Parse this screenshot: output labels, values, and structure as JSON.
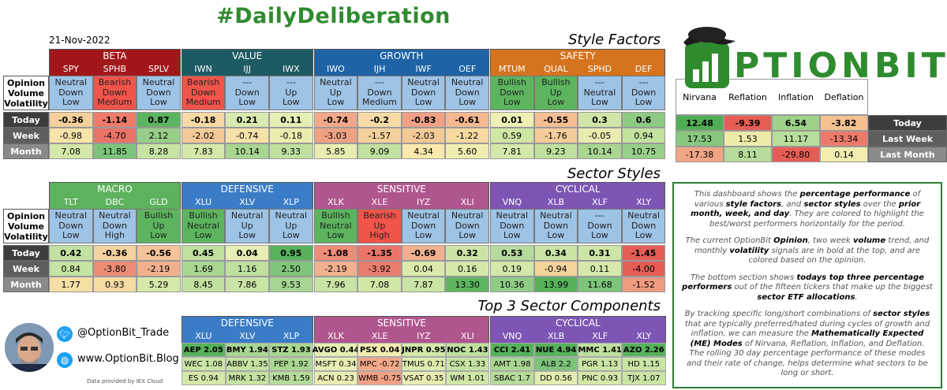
{
  "header": {
    "title": "#DailyDeliberation",
    "date": "21-Nov-2022",
    "logo_text": "PTIONBIT"
  },
  "row_header": {
    "opinion": "Opinion",
    "volume": "Volume",
    "volatility": "Volatility"
  },
  "row_labels": {
    "today": "Today",
    "week": "Week",
    "month": "Month"
  },
  "style_factors": {
    "title": "Style Factors",
    "groups": [
      {
        "name": "BETA",
        "color": "#a3171b",
        "tickers": [
          {
            "t": "SPY",
            "sig": [
              "Neutral",
              "Down",
              "Low"
            ],
            "sigc": "#9dc3e6",
            "today": "-0.36",
            "tc": "#f5d09a",
            "week": "-0.98",
            "wc": "#f8e4a8",
            "month": "7.08",
            "mc": "#d4e8a9"
          },
          {
            "t": "SPHB",
            "sig": [
              "Bearish",
              "Down",
              "Medium"
            ],
            "sigc": "#f0544a",
            "today": "-1.14",
            "tc": "#f07b6b",
            "week": "-4.70",
            "wc": "#e87468",
            "month": "11.85",
            "mc": "#7cc47a"
          },
          {
            "t": "SPLV",
            "sig": [
              "Neutral",
              "Down",
              "Low"
            ],
            "sigc": "#9dc3e6",
            "today": "0.87",
            "tc": "#5cb55e",
            "week": "2.12",
            "wc": "#98ce87",
            "month": "8.28",
            "mc": "#c6e3a3"
          }
        ]
      },
      {
        "name": "VALUE",
        "color": "#1d5a63",
        "tickers": [
          {
            "t": "IWN",
            "sig": [
              "Bearish",
              "Down",
              "Medium"
            ],
            "sigc": "#f0544a",
            "today": "-0.18",
            "tc": "#f7d9a5",
            "week": "-2.02",
            "wc": "#f4c998",
            "month": "7.83",
            "mc": "#d6e9aa"
          },
          {
            "t": "IJJ",
            "sig": [
              "---",
              "Down",
              "Low"
            ],
            "sigc": "#9dc3e6",
            "today": "0.21",
            "tc": "#d8eab0",
            "week": "-0.74",
            "wc": "#f6e1a9",
            "month": "10.14",
            "mc": "#a9d691"
          },
          {
            "t": "IWX",
            "sig": [
              "---",
              "Up",
              "Low"
            ],
            "sigc": "#9dc3e6",
            "today": "0.11",
            "tc": "#e5efb4",
            "week": "-0.18",
            "wc": "#edecb0",
            "month": "9.33",
            "mc": "#bfe09e"
          }
        ]
      },
      {
        "name": "GROWTH",
        "color": "#1e63a6",
        "tickers": [
          {
            "t": "IWO",
            "sig": [
              "Neutral",
              "Up",
              "Low"
            ],
            "sigc": "#9dc3e6",
            "today": "-0.74",
            "tc": "#f3a989",
            "week": "-3.03",
            "wc": "#efa184",
            "month": "5.85",
            "mc": "#e9eeb0"
          },
          {
            "t": "IJH",
            "sig": [
              "---",
              "Down",
              "Medium"
            ],
            "sigc": "#9dc3e6",
            "today": "-0.2",
            "tc": "#f7dba6",
            "week": "-1.57",
            "wc": "#f4d19c",
            "month": "9.09",
            "mc": "#c1e19f"
          },
          {
            "t": "IWF",
            "sig": [
              "Neutral",
              "Down",
              "Low"
            ],
            "sigc": "#9dc3e6",
            "today": "-0.83",
            "tc": "#f2a185",
            "week": "-2.03",
            "wc": "#f4c998",
            "month": "4.34",
            "mc": "#fbe8ac"
          },
          {
            "t": "OEF",
            "sig": [
              "Neutral",
              "Down",
              "Low"
            ],
            "sigc": "#9dc3e6",
            "today": "-0.61",
            "tc": "#f5b891",
            "week": "-1.22",
            "wc": "#f6daa2",
            "month": "5.60",
            "mc": "#f0edb0"
          }
        ]
      },
      {
        "name": "SAFETY",
        "color": "#d5731e",
        "tickers": [
          {
            "t": "MTUM",
            "sig": [
              "Bullish",
              "Down",
              "Low"
            ],
            "sigc": "#5cb55e",
            "today": "0.01",
            "tc": "#eef0b4",
            "week": "0.59",
            "wc": "#cfe6a4",
            "month": "7.81",
            "mc": "#d4e8a9"
          },
          {
            "t": "QUAL",
            "sig": [
              "Bullish",
              "Up",
              "Low"
            ],
            "sigc": "#5cb55e",
            "today": "-0.55",
            "tc": "#f5bf93",
            "week": "-1.76",
            "wc": "#f4cd9a",
            "month": "9.23",
            "mc": "#c0e09e"
          },
          {
            "t": "SPHD",
            "sig": [
              "---",
              "Neutral",
              "Low"
            ],
            "sigc": "#9dc3e6",
            "today": "0.3",
            "tc": "#cfe6a8",
            "week": "-0.05",
            "wc": "#eaebb0",
            "month": "10.14",
            "mc": "#a9d691"
          },
          {
            "t": "DEF",
            "sig": [
              "---",
              "Down",
              "Low"
            ],
            "sigc": "#9dc3e6",
            "today": "0.6",
            "tc": "#8fca84",
            "week": "0.94",
            "wc": "#c3e2a0",
            "month": "10.75",
            "mc": "#98cf8a"
          }
        ]
      }
    ]
  },
  "modes": {
    "headers": [
      "Nirvana",
      "Reflation",
      "Inflation",
      "Deflation"
    ],
    "rows": [
      {
        "label": "Today",
        "vals": [
          "12.48",
          "-9.39",
          "6.54",
          "-3.82"
        ],
        "cols": [
          "#4fae55",
          "#e65d55",
          "#9ed18a",
          "#f4c191"
        ]
      },
      {
        "label": "Last Week",
        "vals": [
          "17.53",
          "1.53",
          "11.17",
          "-13.34"
        ],
        "cols": [
          "#88c77f",
          "#eeeaa9",
          "#b9dd9d",
          "#ec7a6b"
        ]
      },
      {
        "label": "Last Month",
        "vals": [
          "-17.38",
          "8.11",
          "-29.80",
          "0.14"
        ],
        "cols": [
          "#f0a585",
          "#b6db9a",
          "#e65d55",
          "#f2ecb0"
        ]
      }
    ]
  },
  "sector_styles": {
    "title": "Sector Styles",
    "groups": [
      {
        "name": "MACRO",
        "color": "#5db25d",
        "tickers": [
          {
            "t": "TLT",
            "sig": [
              "Neutral",
              "Down",
              "Low"
            ],
            "sigc": "#9dc3e6",
            "today": "0.42",
            "tc": "#c3e2a2",
            "week": "0.84",
            "wc": "#c5e3a1",
            "month": "1.77",
            "mc": "#f4dfa5"
          },
          {
            "t": "DBC",
            "sig": [
              "Neutral",
              "Down",
              "High"
            ],
            "sigc": "#9dc3e6",
            "today": "-0.36",
            "tc": "#f6d2a0",
            "week": "-3.80",
            "wc": "#ed8c76",
            "month": "0.93",
            "mc": "#f6dba3"
          },
          {
            "t": "GLD",
            "sig": [
              "Bullish",
              "Up",
              "Low"
            ],
            "sigc": "#5cb55e",
            "today": "-0.56",
            "tc": "#f5c397",
            "week": "-2.19",
            "wc": "#f1b08e",
            "month": "5.29",
            "mc": "#d6e9aa"
          }
        ]
      },
      {
        "name": "DEFENSIVE",
        "color": "#3b7cc7",
        "tickers": [
          {
            "t": "XLU",
            "sig": [
              "Bullish",
              "Neutral",
              "Low"
            ],
            "sigc": "#5cb55e",
            "today": "0.45",
            "tc": "#bfe09f",
            "week": "1.69",
            "wc": "#a9d691",
            "month": "8.45",
            "mc": "#c2e1a0"
          },
          {
            "t": "XLV",
            "sig": [
              "Neutral",
              "Up",
              "Low"
            ],
            "sigc": "#9dc3e6",
            "today": "0.04",
            "tc": "#e7eeb3",
            "week": "1.16",
            "wc": "#bfe09e",
            "month": "7.86",
            "mc": "#c9e5a5"
          },
          {
            "t": "XLP",
            "sig": [
              "Neutral",
              "Up",
              "Low"
            ],
            "sigc": "#9dc3e6",
            "today": "0.95",
            "tc": "#56b25b",
            "week": "2.50",
            "wc": "#7fc57b",
            "month": "9.53",
            "mc": "#a7d591"
          }
        ]
      },
      {
        "name": "SENSITIVE",
        "color": "#b0568e",
        "tickers": [
          {
            "t": "XLK",
            "sig": [
              "Bullish",
              "Neutral",
              "Low"
            ],
            "sigc": "#5cb55e",
            "today": "-1.08",
            "tc": "#ee8d77",
            "week": "-2.19",
            "wc": "#f1b08e",
            "month": "7.96",
            "mc": "#c8e4a4"
          },
          {
            "t": "XLE",
            "sig": [
              "Bearish",
              "Up",
              "High"
            ],
            "sigc": "#f0544a",
            "today": "-1.35",
            "tc": "#ea766a",
            "week": "-3.92",
            "wc": "#e97e6e",
            "month": "7.08",
            "mc": "#d1e7a8"
          },
          {
            "t": "IYZ",
            "sig": [
              "Neutral",
              "Down",
              "Low"
            ],
            "sigc": "#9dc3e6",
            "today": "-0.69",
            "tc": "#f3b08e",
            "week": "0.04",
            "wc": "#d9eaac",
            "month": "7.87",
            "mc": "#c9e5a5"
          },
          {
            "t": "XLI",
            "sig": [
              "Neutral",
              "Down",
              "Low"
            ],
            "sigc": "#9dc3e6",
            "today": "0.32",
            "tc": "#cce5a6",
            "week": "0.16",
            "wc": "#d5e9aa",
            "month": "13.30",
            "mc": "#5eb55f"
          }
        ]
      },
      {
        "name": "CYCLICAL",
        "color": "#7d56b5",
        "tickers": [
          {
            "t": "VNQ",
            "sig": [
              "Neutral",
              "Down",
              "Low"
            ],
            "sigc": "#9dc3e6",
            "today": "0.53",
            "tc": "#b5dc9c",
            "week": "0.19",
            "wc": "#d3e8a9",
            "month": "10.36",
            "mc": "#91cc87"
          },
          {
            "t": "XLB",
            "sig": [
              "Neutral",
              "Down",
              "Low"
            ],
            "sigc": "#9dc3e6",
            "today": "0.34",
            "tc": "#c9e4a5",
            "week": "-0.94",
            "wc": "#f5d39d",
            "month": "13.99",
            "mc": "#56b25b"
          },
          {
            "t": "XLF",
            "sig": [
              "---",
              "Down",
              "Low"
            ],
            "sigc": "#9dc3e6",
            "today": "0.31",
            "tc": "#cde5a7",
            "week": "0.11",
            "wc": "#d6e9aa",
            "month": "11.68",
            "mc": "#7cc47a"
          },
          {
            "t": "XLY",
            "sig": [
              "Neutral",
              "Down",
              "Low"
            ],
            "sigc": "#9dc3e6",
            "today": "-1.45",
            "tc": "#e65d55",
            "week": "-4.00",
            "wc": "#e65d55",
            "month": "-1.52",
            "mc": "#f09a80"
          }
        ]
      }
    ]
  },
  "top3": {
    "title": "Top 3 Sector Components",
    "groups": [
      {
        "name": "DEFENSIVE",
        "color": "#3b7cc7",
        "tickers": [
          "XLU",
          "XLV",
          "XLP"
        ],
        "rows": [
          [
            {
              "v": "AEP 2.05",
              "c": "#56b25b"
            },
            {
              "v": "BMY 1.94",
              "c": "#a9d691"
            },
            {
              "v": "STZ 1.93",
              "c": "#a9d691"
            }
          ],
          [
            {
              "v": "WEC 1.08",
              "c": "#c9e5a5"
            },
            {
              "v": "ABBV 1.35",
              "c": "#c4e2a1"
            },
            {
              "v": "PEP 1.92",
              "c": "#a9d691"
            }
          ],
          [
            {
              "v": "ES 0.94",
              "c": "#d4e8a9"
            },
            {
              "v": "MRK 1.32",
              "c": "#c4e2a1"
            },
            {
              "v": "KMB 1.59",
              "c": "#b6db9a"
            }
          ]
        ]
      },
      {
        "name": "SENSITIVE",
        "color": "#b0568e",
        "tickers": [
          "XLK",
          "XLE",
          "IYZ",
          "XLI"
        ],
        "rows": [
          [
            {
              "v": "AVGO 0.44",
              "c": "#e5efb4"
            },
            {
              "v": "PSX 0.04",
              "c": "#f2ecb0"
            },
            {
              "v": "JNPR 0.95",
              "c": "#d4e8a9"
            },
            {
              "v": "NOC 1.43",
              "c": "#bfe09e"
            }
          ],
          [
            {
              "v": "MSFT 0.34",
              "c": "#e8eeb3"
            },
            {
              "v": "MPC -0.72",
              "c": "#f3a989"
            },
            {
              "v": "TMUS 0.71",
              "c": "#dcebae"
            },
            {
              "v": "CSX 1.33",
              "c": "#c4e2a1"
            }
          ],
          [
            {
              "v": "ACN 0.23",
              "c": "#ebedb2"
            },
            {
              "v": "WMB -0.75",
              "c": "#f2a185"
            },
            {
              "v": "VSAT 0.35",
              "c": "#e8eeb3"
            },
            {
              "v": "WM 1.01",
              "c": "#d0e7a7"
            }
          ]
        ]
      },
      {
        "name": "CYCLICAL",
        "color": "#7d56b5",
        "tickers": [
          "VNQ",
          "XLB",
          "XLF",
          "XLY"
        ],
        "rows": [
          [
            {
              "v": "CCI 2.41",
              "c": "#56b25b"
            },
            {
              "v": "NUE 4.94",
              "c": "#56b25b"
            },
            {
              "v": "MMC 1.41",
              "c": "#bfe09e"
            },
            {
              "v": "AZO 2.26",
              "c": "#56b25b"
            }
          ],
          [
            {
              "v": "AMT 1.98",
              "c": "#a9d691"
            },
            {
              "v": "ALB 2.2",
              "c": "#7cc47a"
            },
            {
              "v": "PGR 1.13",
              "c": "#c9e5a5"
            },
            {
              "v": "HD 1.15",
              "c": "#c9e5a5"
            }
          ],
          [
            {
              "v": "SBAC 1.7",
              "c": "#b6db9a"
            },
            {
              "v": "DD 0.56",
              "c": "#e1edb1"
            },
            {
              "v": "PNC 0.93",
              "c": "#d4e8a9"
            },
            {
              "v": "TJX 1.07",
              "c": "#c9e5a5"
            }
          ]
        ]
      }
    ]
  },
  "social": {
    "twitter": "@OptionBit_Trade",
    "website": "www.OptionBit.Blog",
    "credit": "Data provided by IEX Cloud"
  },
  "description": {
    "p1": [
      "This dashboard shows the ",
      "percentage performance",
      " of various ",
      "style factors",
      ", and ",
      "sector styles",
      " over the ",
      "prior month, week, and day",
      ". They are colored to highlight the best/worst performers horizontally for the period."
    ],
    "p2": [
      "The current OptionBit ",
      "Opinion",
      ", two week ",
      "volume",
      " trend, and monthly ",
      "volatility",
      " signals are in bold at the top, and are colored based on the opinion."
    ],
    "p3": [
      "The bottom section shows ",
      "todays top three percentage performers",
      " out of the fifteen tickers that make up the biggest ",
      "sector ETF allocations",
      "."
    ],
    "p4": [
      "By tracking specific long/short combinations of ",
      "sector styles",
      " that are typically preferred/hated during cycles of growth and inflation, we can measure the ",
      "Mathematically Expected (ME) Modes",
      " of Nirvana, Reflation, Inflation, and Deflation. The rolling 30 day percentage performance of these modes and their rate of change, helps determine what sectors to be long or short."
    ]
  }
}
